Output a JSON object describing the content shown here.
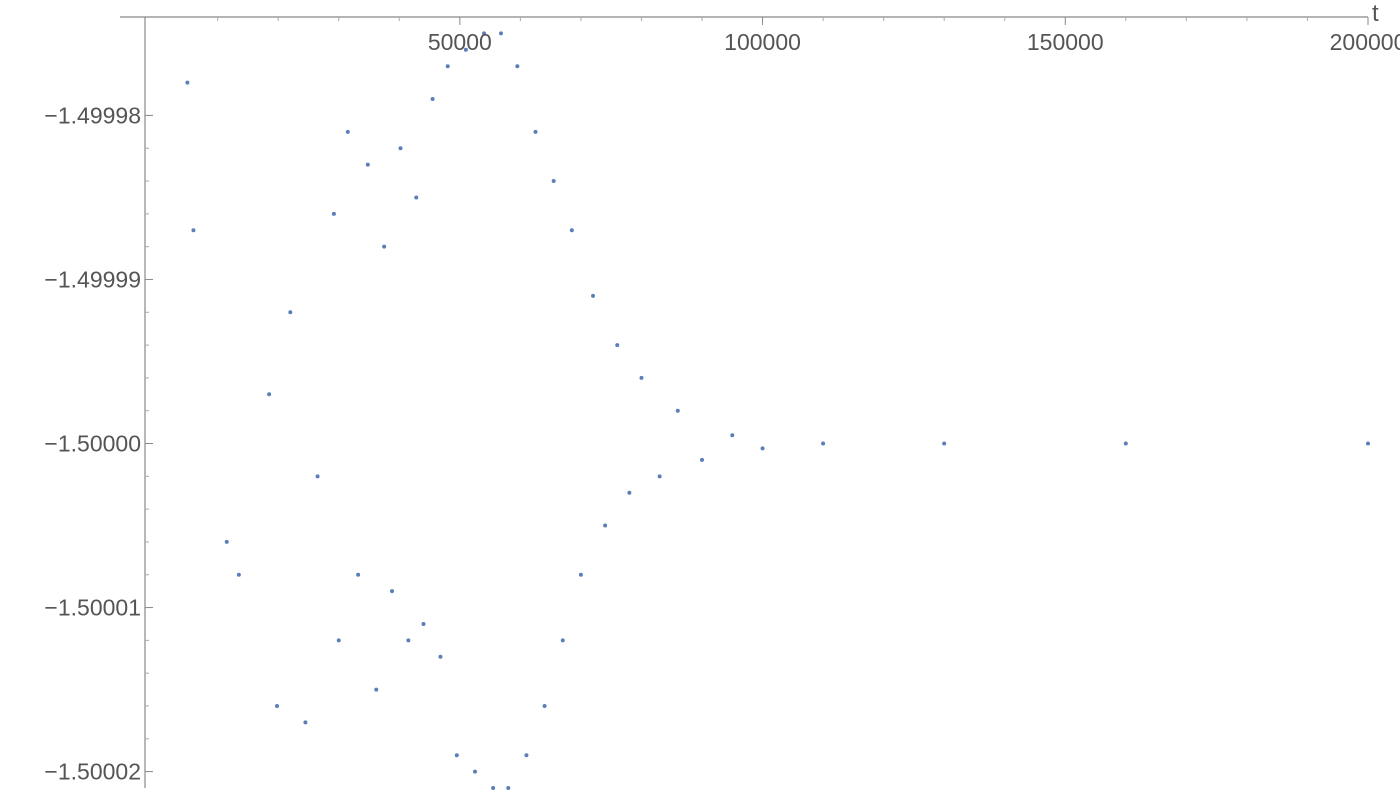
{
  "chart_data": {
    "type": "scatter",
    "title": "",
    "xlabel": "t",
    "ylabel": "",
    "xlim": [
      -2000,
      200000
    ],
    "ylim": [
      -1.500021,
      -1.499974
    ],
    "x_ticks": [
      50000,
      100000,
      150000,
      200000
    ],
    "x_tick_labels": [
      "50000",
      "100000",
      "150000",
      "200000"
    ],
    "y_ticks": [
      -1.49998,
      -1.49999,
      -1.5,
      -1.50001,
      -1.50002
    ],
    "y_tick_labels": [
      "−1.49998",
      "−1.49999",
      "−1.50000",
      "−1.50001",
      "−1.50002"
    ],
    "grid": false,
    "legend": false,
    "marker_color": "#5B7FB8",
    "series": [
      {
        "description_points": "sampled points of a damped oscillation about -1.5",
        "x": [
          5000,
          6000,
          11500,
          13500,
          18500,
          19800,
          22000,
          24500,
          26500,
          29200,
          30000,
          31500,
          33200,
          34800,
          36200,
          37500,
          38800,
          40200,
          41500,
          42800,
          44000,
          45500,
          46800,
          48000,
          49500,
          51000,
          52500,
          54000,
          55500,
          56800,
          58000,
          59500,
          61000,
          62500,
          64000,
          65500,
          67000,
          68500,
          70000,
          72000,
          74000,
          76000,
          78000,
          80000,
          83000,
          86000,
          90000,
          95000,
          100000,
          110000,
          130000,
          160000,
          200000
        ],
        "y": [
          -1.499978,
          -1.499987,
          -1.500006,
          -1.500008,
          -1.499997,
          -1.500016,
          -1.499992,
          -1.500017,
          -1.500002,
          -1.499986,
          -1.500012,
          -1.499981,
          -1.500008,
          -1.499983,
          -1.500015,
          -1.499988,
          -1.500009,
          -1.499982,
          -1.500012,
          -1.499985,
          -1.500011,
          -1.499979,
          -1.500013,
          -1.499977,
          -1.500019,
          -1.499976,
          -1.50002,
          -1.499975,
          -1.500021,
          -1.499975,
          -1.500021,
          -1.499977,
          -1.500019,
          -1.499981,
          -1.500016,
          -1.499984,
          -1.500012,
          -1.499987,
          -1.500008,
          -1.499991,
          -1.500005,
          -1.499994,
          -1.500003,
          -1.499996,
          -1.500002,
          -1.499998,
          -1.500001,
          -1.4999995,
          -1.5000003,
          -1.5,
          -1.5,
          -1.5,
          -1.5
        ]
      }
    ]
  }
}
